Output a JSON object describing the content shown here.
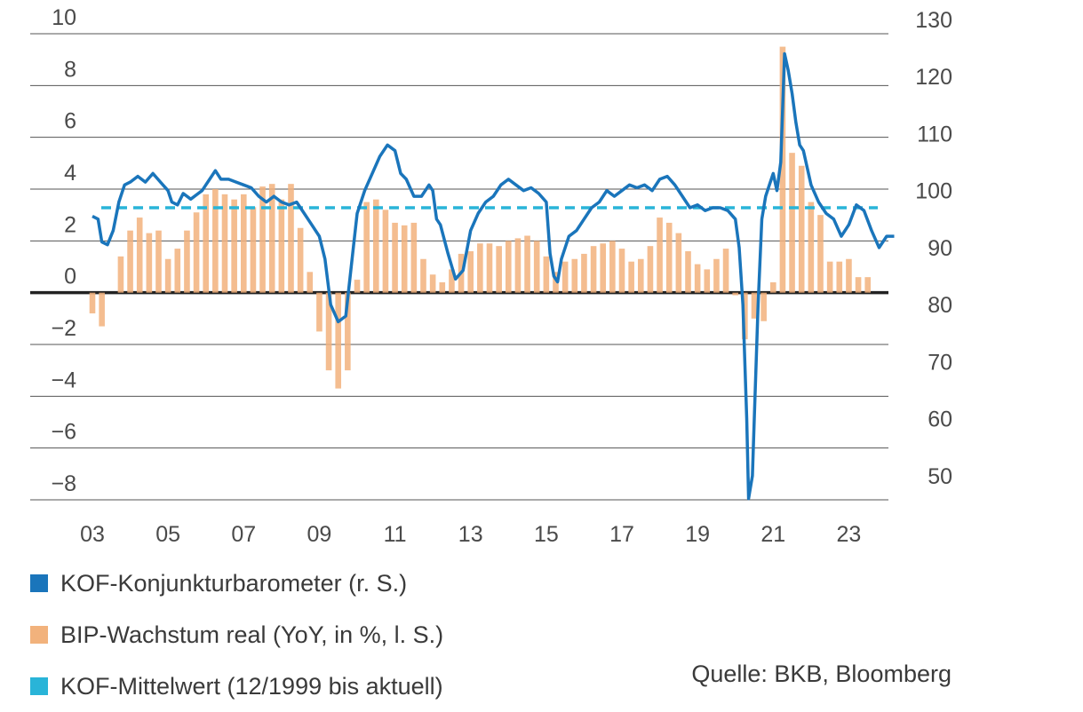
{
  "chart_data": {
    "type": "bar+line",
    "left_axis": {
      "ylim": [
        -8,
        10
      ],
      "ticks": [
        10,
        8,
        6,
        4,
        2,
        0,
        -2,
        -4,
        -6,
        -8
      ],
      "tick_labels": [
        "10",
        "8",
        "6",
        "4",
        "2",
        "0",
        "−2",
        "−4",
        "−6",
        "−8"
      ]
    },
    "right_axis": {
      "ylim": [
        45,
        130
      ],
      "ticks": [
        130,
        120,
        110,
        100,
        90,
        80,
        70,
        60,
        50
      ],
      "tick_labels": [
        "130",
        "120",
        "110",
        "100",
        "90",
        "80",
        "70",
        "60",
        "50"
      ]
    },
    "x_range": [
      2003,
      2024
    ],
    "x_ticks": [
      2003,
      2005,
      2007,
      2009,
      2011,
      2013,
      2015,
      2017,
      2019,
      2021,
      2023
    ],
    "x_tick_labels": [
      "03",
      "05",
      "07",
      "09",
      "11",
      "13",
      "15",
      "17",
      "19",
      "21",
      "23"
    ],
    "series": [
      {
        "name": "KOF-Konjunkturbarometer (r. S.)",
        "axis": "right",
        "color": "#1a75bb",
        "points": [
          [
            2003.0,
            95.5
          ],
          [
            2003.15,
            95.0
          ],
          [
            2003.25,
            91
          ],
          [
            2003.4,
            90.5
          ],
          [
            2003.55,
            93
          ],
          [
            2003.7,
            98
          ],
          [
            2003.85,
            101
          ],
          [
            2004.0,
            101.5
          ],
          [
            2004.2,
            102.5
          ],
          [
            2004.4,
            101.5
          ],
          [
            2004.6,
            103
          ],
          [
            2004.8,
            101.5
          ],
          [
            2005.0,
            100
          ],
          [
            2005.1,
            98
          ],
          [
            2005.25,
            97.5
          ],
          [
            2005.4,
            99.5
          ],
          [
            2005.6,
            98.5
          ],
          [
            2005.8,
            99.5
          ],
          [
            2005.9,
            100
          ],
          [
            2006.0,
            101
          ],
          [
            2006.1,
            102
          ],
          [
            2006.25,
            103.5
          ],
          [
            2006.4,
            102
          ],
          [
            2006.6,
            102
          ],
          [
            2006.8,
            101.5
          ],
          [
            2007.0,
            101
          ],
          [
            2007.2,
            100.5
          ],
          [
            2007.4,
            99
          ],
          [
            2007.6,
            98
          ],
          [
            2007.8,
            99
          ],
          [
            2008.0,
            98
          ],
          [
            2008.2,
            97.5
          ],
          [
            2008.4,
            98
          ],
          [
            2008.6,
            96
          ],
          [
            2008.8,
            94
          ],
          [
            2009.0,
            92
          ],
          [
            2009.15,
            88
          ],
          [
            2009.3,
            80
          ],
          [
            2009.5,
            77
          ],
          [
            2009.7,
            78
          ],
          [
            2009.9,
            90
          ],
          [
            2010.0,
            96
          ],
          [
            2010.2,
            100
          ],
          [
            2010.4,
            103
          ],
          [
            2010.6,
            106
          ],
          [
            2010.8,
            108
          ],
          [
            2011.0,
            107
          ],
          [
            2011.15,
            103
          ],
          [
            2011.3,
            102
          ],
          [
            2011.5,
            99
          ],
          [
            2011.7,
            99
          ],
          [
            2011.9,
            101
          ],
          [
            2012.0,
            100
          ],
          [
            2012.1,
            95
          ],
          [
            2012.2,
            94
          ],
          [
            2012.4,
            89
          ],
          [
            2012.6,
            84.5
          ],
          [
            2012.8,
            86
          ],
          [
            2013.0,
            93
          ],
          [
            2013.2,
            96
          ],
          [
            2013.4,
            98
          ],
          [
            2013.6,
            99
          ],
          [
            2013.8,
            101
          ],
          [
            2014.0,
            102
          ],
          [
            2014.2,
            101
          ],
          [
            2014.4,
            100
          ],
          [
            2014.6,
            100.5
          ],
          [
            2014.8,
            99.5
          ],
          [
            2015.0,
            98
          ],
          [
            2015.1,
            89
          ],
          [
            2015.2,
            85
          ],
          [
            2015.3,
            84
          ],
          [
            2015.4,
            88
          ],
          [
            2015.6,
            92
          ],
          [
            2015.8,
            93
          ],
          [
            2016.0,
            95
          ],
          [
            2016.2,
            97
          ],
          [
            2016.4,
            98
          ],
          [
            2016.6,
            100
          ],
          [
            2016.8,
            99
          ],
          [
            2017.0,
            100
          ],
          [
            2017.2,
            101
          ],
          [
            2017.4,
            100.5
          ],
          [
            2017.6,
            101
          ],
          [
            2017.8,
            100
          ],
          [
            2018.0,
            102
          ],
          [
            2018.2,
            102.5
          ],
          [
            2018.4,
            101
          ],
          [
            2018.6,
            99
          ],
          [
            2018.8,
            97
          ],
          [
            2019.0,
            97.5
          ],
          [
            2019.2,
            96.5
          ],
          [
            2019.4,
            97
          ],
          [
            2019.6,
            97
          ],
          [
            2019.8,
            96.5
          ],
          [
            2020.0,
            95
          ],
          [
            2020.1,
            90
          ],
          [
            2020.2,
            80
          ],
          [
            2020.3,
            60
          ],
          [
            2020.35,
            46
          ],
          [
            2020.45,
            50
          ],
          [
            2020.5,
            60
          ],
          [
            2020.6,
            80
          ],
          [
            2020.7,
            95
          ],
          [
            2020.8,
            99
          ],
          [
            2020.9,
            101
          ],
          [
            2021.0,
            103
          ],
          [
            2021.1,
            100
          ],
          [
            2021.2,
            105
          ],
          [
            2021.3,
            124
          ],
          [
            2021.4,
            121
          ],
          [
            2021.5,
            117
          ],
          [
            2021.6,
            112
          ],
          [
            2021.7,
            108
          ],
          [
            2021.8,
            107
          ],
          [
            2021.9,
            104
          ],
          [
            2022.0,
            101
          ],
          [
            2022.2,
            98
          ],
          [
            2022.4,
            96
          ],
          [
            2022.6,
            95
          ],
          [
            2022.8,
            92
          ],
          [
            2023.0,
            94
          ],
          [
            2023.2,
            97.5
          ],
          [
            2023.4,
            96.5
          ],
          [
            2023.6,
            93
          ],
          [
            2023.8,
            90
          ],
          [
            2024.0,
            92
          ],
          [
            2024.2,
            92
          ]
        ]
      },
      {
        "name": "BIP-Wachstum real (YoY, in %, l. S.)",
        "axis": "left",
        "color": "#f2b27c",
        "type": "bar",
        "points": [
          [
            2003.0,
            -0.8
          ],
          [
            2003.25,
            -1.3
          ],
          [
            2003.5,
            0
          ],
          [
            2003.75,
            1.4
          ],
          [
            2004.0,
            2.4
          ],
          [
            2004.25,
            2.9
          ],
          [
            2004.5,
            2.3
          ],
          [
            2004.75,
            2.4
          ],
          [
            2005.0,
            1.3
          ],
          [
            2005.25,
            1.7
          ],
          [
            2005.5,
            2.4
          ],
          [
            2005.75,
            3.1
          ],
          [
            2006.0,
            3.8
          ],
          [
            2006.25,
            4.0
          ],
          [
            2006.5,
            3.8
          ],
          [
            2006.75,
            3.6
          ],
          [
            2007.0,
            3.8
          ],
          [
            2007.25,
            3.3
          ],
          [
            2007.5,
            4.1
          ],
          [
            2007.75,
            4.2
          ],
          [
            2008.0,
            3.6
          ],
          [
            2008.25,
            4.2
          ],
          [
            2008.5,
            2.5
          ],
          [
            2008.75,
            0.8
          ],
          [
            2009.0,
            -1.5
          ],
          [
            2009.25,
            -3.0
          ],
          [
            2009.5,
            -3.7
          ],
          [
            2009.75,
            -3.0
          ],
          [
            2010.0,
            0.5
          ],
          [
            2010.25,
            3.5
          ],
          [
            2010.5,
            3.6
          ],
          [
            2010.75,
            3.2
          ],
          [
            2011.0,
            2.7
          ],
          [
            2011.25,
            2.6
          ],
          [
            2011.5,
            2.7
          ],
          [
            2011.75,
            1.3
          ],
          [
            2012.0,
            0.7
          ],
          [
            2012.25,
            0.4
          ],
          [
            2012.5,
            0.9
          ],
          [
            2012.75,
            1.5
          ],
          [
            2013.0,
            1.6
          ],
          [
            2013.25,
            1.9
          ],
          [
            2013.5,
            1.9
          ],
          [
            2013.75,
            1.8
          ],
          [
            2014.0,
            2.0
          ],
          [
            2014.25,
            2.1
          ],
          [
            2014.5,
            2.2
          ],
          [
            2014.75,
            2.0
          ],
          [
            2015.0,
            1.4
          ],
          [
            2015.25,
            0.8
          ],
          [
            2015.5,
            1.2
          ],
          [
            2015.75,
            1.3
          ],
          [
            2016.0,
            1.5
          ],
          [
            2016.25,
            1.8
          ],
          [
            2016.5,
            1.9
          ],
          [
            2016.75,
            2.0
          ],
          [
            2017.0,
            1.7
          ],
          [
            2017.25,
            1.2
          ],
          [
            2017.5,
            1.3
          ],
          [
            2017.75,
            1.8
          ],
          [
            2018.0,
            2.9
          ],
          [
            2018.25,
            2.7
          ],
          [
            2018.5,
            2.3
          ],
          [
            2018.75,
            1.6
          ],
          [
            2019.0,
            1.1
          ],
          [
            2019.25,
            0.9
          ],
          [
            2019.5,
            1.3
          ],
          [
            2019.75,
            1.7
          ],
          [
            2020.0,
            -0.1
          ],
          [
            2020.25,
            -1.8
          ],
          [
            2020.5,
            -1.0
          ],
          [
            2020.75,
            -1.1
          ],
          [
            2021.0,
            0.4
          ],
          [
            2021.25,
            9.5
          ],
          [
            2021.5,
            5.4
          ],
          [
            2021.75,
            4.9
          ],
          [
            2022.0,
            3.5
          ],
          [
            2022.25,
            3.0
          ],
          [
            2022.5,
            1.2
          ],
          [
            2022.75,
            1.2
          ],
          [
            2023.0,
            1.3
          ],
          [
            2023.25,
            0.6
          ],
          [
            2023.5,
            0.6
          ]
        ]
      },
      {
        "name": "KOF-Mittelwert (12/1999 bis aktuell)",
        "axis": "right",
        "color": "#29b4d8",
        "type": "line-dashed",
        "value": 97
      }
    ]
  },
  "legend": [
    {
      "label": "KOF-Konjunkturbarometer (r. S.)",
      "color": "#1a75bb"
    },
    {
      "label": "BIP-Wachstum real (YoY, in %, l. S.)",
      "color": "#f2b27c"
    },
    {
      "label": "KOF-Mittelwert (12/1999 bis aktuell)",
      "color": "#29b4d8"
    }
  ],
  "source": "Quelle: BKB, Bloomberg"
}
